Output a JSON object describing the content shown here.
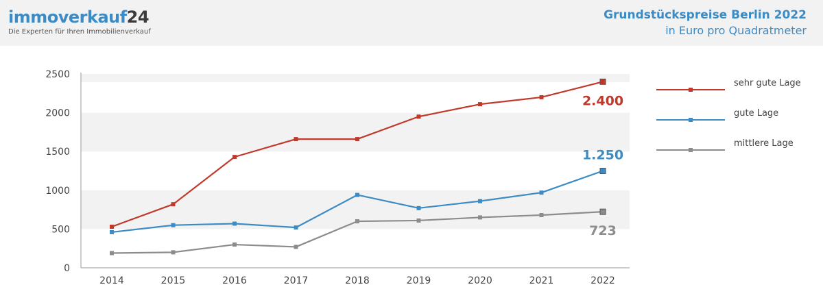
{
  "header": {
    "logo_main": "immoverkauf",
    "logo_num": "24",
    "tagline": "Die Experten für Ihren Immobilienverkauf",
    "title": "Grundstückspreise Berlin 2022",
    "subtitle": "in Euro pro Quadratmeter"
  },
  "chart_data": {
    "type": "line",
    "title": "Grundstückspreise Berlin 2022",
    "subtitle": "in Euro pro Quadratmeter",
    "x": [
      "2014",
      "2015",
      "2016",
      "2017",
      "2018",
      "2019",
      "2020",
      "2021",
      "2022"
    ],
    "ylim": [
      0,
      2500
    ],
    "yticks": [
      "0",
      "500",
      "1000",
      "1500",
      "2000",
      "2500"
    ],
    "grid": "alternating horizontal bands",
    "legend": "right",
    "series": [
      {
        "name": "sehr gute Lage",
        "color": "#c0392b",
        "values": [
          530,
          820,
          1430,
          1660,
          1660,
          1950,
          2110,
          2200,
          2400
        ],
        "end_label": "2.400"
      },
      {
        "name": "gute Lage",
        "color": "#3d8bc4",
        "values": [
          460,
          550,
          570,
          520,
          940,
          770,
          860,
          970,
          1250
        ],
        "end_label": "1.250"
      },
      {
        "name": "mittlere Lage",
        "color": "#8c8c8c",
        "values": [
          190,
          200,
          300,
          270,
          600,
          610,
          650,
          680,
          723
        ],
        "end_label": "723"
      }
    ]
  }
}
